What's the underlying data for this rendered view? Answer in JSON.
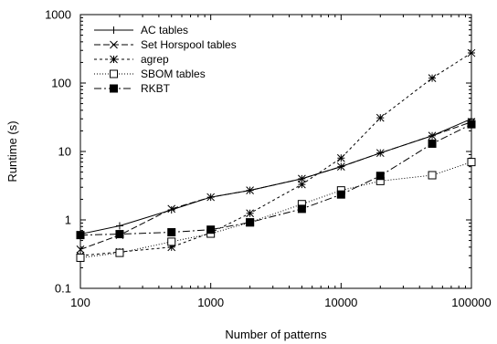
{
  "chart_data": {
    "type": "line",
    "xlabel": "Number of patterns",
    "ylabel": "Runtime (s)",
    "xscale": "log",
    "yscale": "log",
    "xlim": [
      100,
      100000
    ],
    "ylim": [
      0.1,
      1000
    ],
    "x_ticks": [
      100,
      1000,
      10000,
      100000
    ],
    "x_tick_labels": [
      "100",
      "1000",
      "10000",
      "100000"
    ],
    "y_ticks": [
      0.1,
      1,
      10,
      100,
      1000
    ],
    "y_tick_labels": [
      "0.1",
      "1",
      "10",
      "100",
      "1000"
    ],
    "legend_position": "top-left",
    "grid": false,
    "series": [
      {
        "name": "AC tables",
        "marker": "plus",
        "dash": "solid",
        "x": [
          100,
          200,
          500,
          1000,
          2000,
          5000,
          10000,
          20000,
          50000,
          100000
        ],
        "y": [
          0.62,
          0.82,
          1.4,
          2.15,
          2.7,
          4.0,
          6.0,
          9.5,
          17,
          30
        ]
      },
      {
        "name": "Set Horspool tables",
        "marker": "x",
        "dash": "long-dash",
        "x": [
          100,
          200,
          500,
          1000,
          2000,
          5000,
          10000,
          20000,
          50000,
          100000
        ],
        "y": [
          0.37,
          0.6,
          1.45,
          2.15,
          2.7,
          4.0,
          6.0,
          9.5,
          17,
          27
        ]
      },
      {
        "name": "agrep",
        "marker": "star",
        "dash": "dotted",
        "x": [
          100,
          200,
          500,
          1000,
          2000,
          5000,
          10000,
          20000,
          50000,
          100000
        ],
        "y": [
          0.3,
          0.34,
          0.4,
          0.65,
          1.25,
          3.3,
          8.0,
          31,
          118,
          275
        ]
      },
      {
        "name": "SBOM tables",
        "marker": "open-square",
        "dash": "fine-dot",
        "x": [
          100,
          200,
          500,
          1000,
          2000,
          5000,
          10000,
          20000,
          50000,
          100000
        ],
        "y": [
          0.28,
          0.33,
          0.48,
          0.63,
          0.92,
          1.7,
          2.7,
          3.7,
          4.5,
          7.0
        ]
      },
      {
        "name": "RKBT",
        "marker": "filled-square",
        "dash": "dash-dot",
        "x": [
          100,
          200,
          500,
          1000,
          2000,
          5000,
          10000,
          20000,
          50000,
          100000
        ],
        "y": [
          0.6,
          0.62,
          0.66,
          0.72,
          0.92,
          1.45,
          2.35,
          4.4,
          13,
          25
        ]
      }
    ]
  }
}
